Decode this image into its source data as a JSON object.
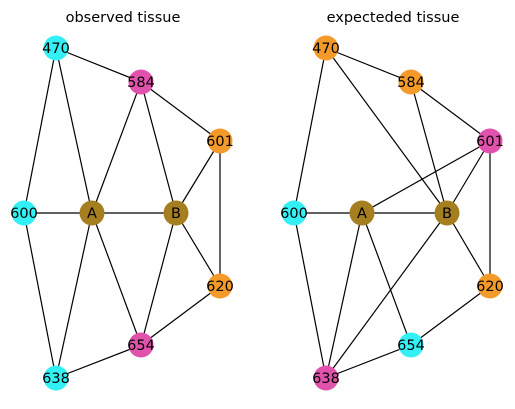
{
  "colors": {
    "cyan": "#33f0f5",
    "magenta": "#e052ac",
    "orange": "#f39a2b",
    "olive": "#a57e1f",
    "edge": "#000000"
  },
  "panels": [
    {
      "id": "observed",
      "title": "observed tissue",
      "nodes": [
        {
          "id": "470",
          "label": "470",
          "color": "cyan"
        },
        {
          "id": "584",
          "label": "584",
          "color": "magenta"
        },
        {
          "id": "601",
          "label": "601",
          "color": "orange"
        },
        {
          "id": "600",
          "label": "600",
          "color": "cyan"
        },
        {
          "id": "A",
          "label": "A",
          "color": "olive"
        },
        {
          "id": "B",
          "label": "B",
          "color": "olive"
        },
        {
          "id": "620",
          "label": "620",
          "color": "orange"
        },
        {
          "id": "654",
          "label": "654",
          "color": "magenta"
        },
        {
          "id": "638",
          "label": "638",
          "color": "cyan"
        }
      ],
      "edges": [
        [
          "470",
          "584"
        ],
        [
          "470",
          "600"
        ],
        [
          "470",
          "A"
        ],
        [
          "584",
          "601"
        ],
        [
          "584",
          "A"
        ],
        [
          "584",
          "B"
        ],
        [
          "601",
          "B"
        ],
        [
          "601",
          "620"
        ],
        [
          "600",
          "A"
        ],
        [
          "600",
          "638"
        ],
        [
          "A",
          "B"
        ],
        [
          "A",
          "638"
        ],
        [
          "A",
          "654"
        ],
        [
          "B",
          "620"
        ],
        [
          "B",
          "654"
        ],
        [
          "620",
          "654"
        ],
        [
          "654",
          "638"
        ]
      ]
    },
    {
      "id": "expected",
      "title": "expecteded tissue",
      "nodes": [
        {
          "id": "470",
          "label": "470",
          "color": "orange"
        },
        {
          "id": "584",
          "label": "584",
          "color": "orange"
        },
        {
          "id": "601",
          "label": "601",
          "color": "magenta"
        },
        {
          "id": "600",
          "label": "600",
          "color": "cyan"
        },
        {
          "id": "A",
          "label": "A",
          "color": "olive"
        },
        {
          "id": "B",
          "label": "B",
          "color": "olive"
        },
        {
          "id": "620",
          "label": "620",
          "color": "orange"
        },
        {
          "id": "654",
          "label": "654",
          "color": "cyan"
        },
        {
          "id": "638",
          "label": "638",
          "color": "magenta"
        }
      ],
      "edges": [
        [
          "470",
          "584"
        ],
        [
          "470",
          "600"
        ],
        [
          "470",
          "B"
        ],
        [
          "584",
          "601"
        ],
        [
          "584",
          "B"
        ],
        [
          "601",
          "A"
        ],
        [
          "601",
          "B"
        ],
        [
          "601",
          "620"
        ],
        [
          "600",
          "A"
        ],
        [
          "600",
          "638"
        ],
        [
          "A",
          "B"
        ],
        [
          "A",
          "638"
        ],
        [
          "A",
          "654"
        ],
        [
          "B",
          "620"
        ],
        [
          "B",
          "638"
        ],
        [
          "620",
          "654"
        ],
        [
          "654",
          "638"
        ]
      ]
    }
  ]
}
